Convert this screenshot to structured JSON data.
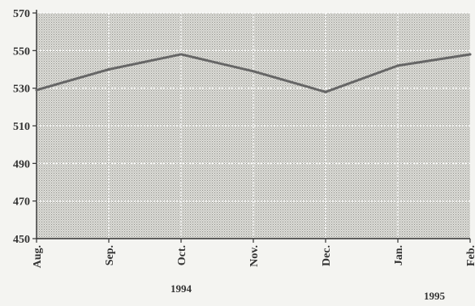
{
  "chart_data": {
    "type": "line",
    "title": "",
    "xlabel": "",
    "ylabel": "",
    "categories": [
      "Aug.",
      "Sep.",
      "Oct.",
      "Nov.",
      "Dec.",
      "Jan.",
      "Feb."
    ],
    "series": [
      {
        "values": [
          529,
          540,
          548,
          539,
          528,
          542,
          548
        ]
      }
    ],
    "ylim": [
      450,
      570
    ],
    "yticks": [
      450,
      470,
      490,
      510,
      530,
      550,
      570
    ],
    "year_labels": [
      {
        "text": "1994",
        "category": "Oct."
      },
      {
        "text": "1995",
        "category": "Jan."
      }
    ],
    "grid": true,
    "legend": "none",
    "colors": {
      "plot_background": "#c9c9c4",
      "line": "#666666",
      "grid": "#ffffff",
      "axis": "#333333"
    }
  }
}
